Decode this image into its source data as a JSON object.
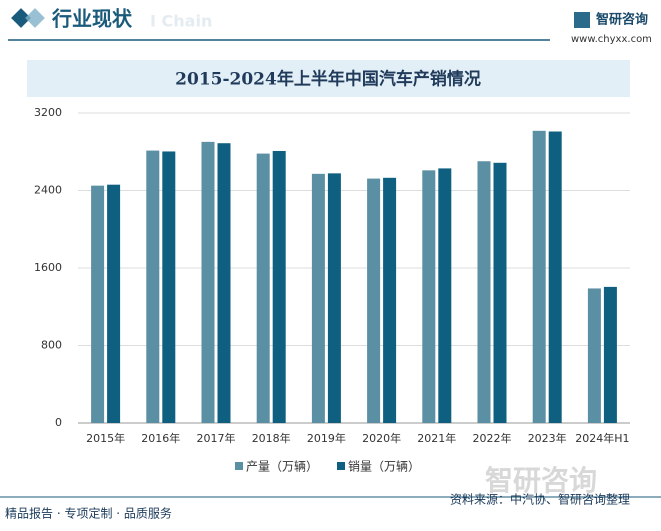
{
  "header": {
    "title": "行业现状",
    "watermark": "I Chain",
    "logo_name": "智研咨询",
    "logo_url": "www.chyxx.com"
  },
  "chart_data": {
    "type": "bar",
    "title": "2015-2024年上半年中国汽车产销情况",
    "categories": [
      "2015年",
      "2016年",
      "2017年",
      "2018年",
      "2019年",
      "2020年",
      "2021年",
      "2022年",
      "2023年",
      "2024年H1"
    ],
    "series": [
      {
        "name": "产量（万辆）",
        "color": "#5b8fa3",
        "values": [
          2450,
          2812,
          2902,
          2781,
          2572,
          2523,
          2608,
          2702,
          3016,
          1389
        ]
      },
      {
        "name": "销量（万辆）",
        "color": "#0e5f80",
        "values": [
          2460,
          2803,
          2888,
          2808,
          2577,
          2531,
          2628,
          2686,
          3009,
          1405
        ]
      }
    ],
    "ylim": [
      0,
      3200
    ],
    "yticks": [
      0,
      800,
      1600,
      2400,
      3200
    ],
    "grid": true
  },
  "footer": {
    "slogan": "精品报告 · 专项定制 · 品质服务",
    "source": "资料来源：中汽协、智研咨询整理",
    "watermark": "智研咨询"
  }
}
